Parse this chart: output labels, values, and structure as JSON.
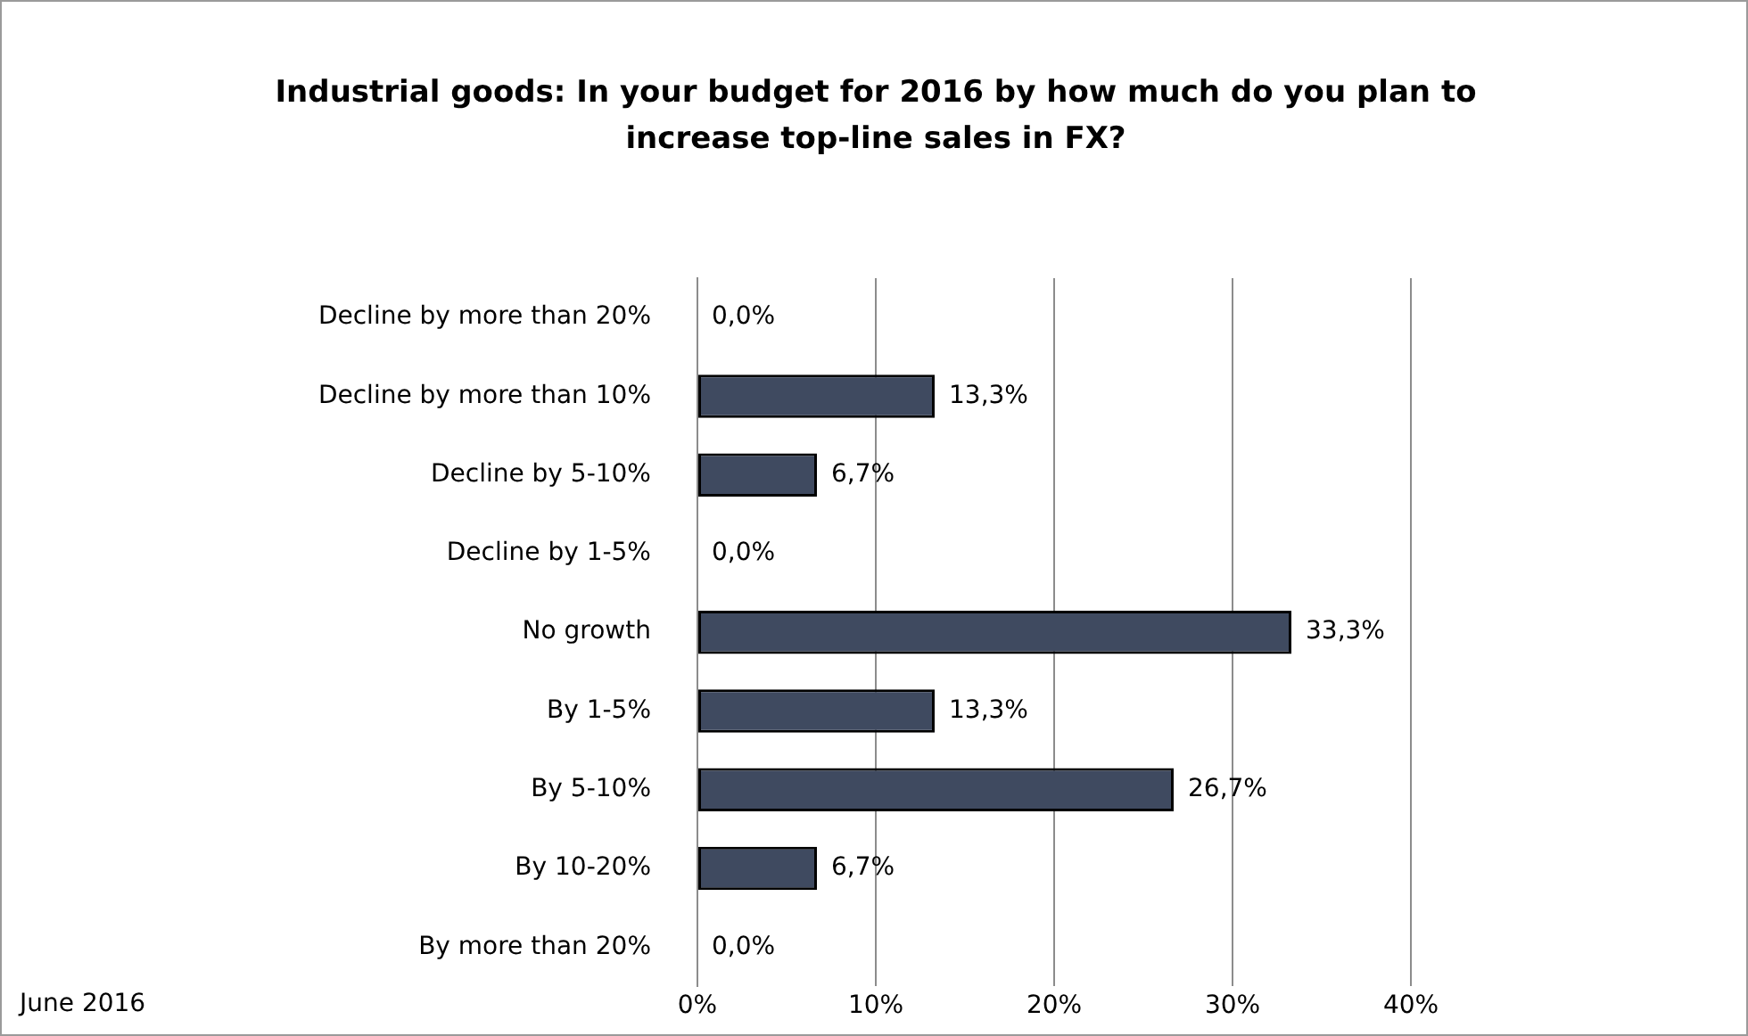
{
  "chart_data": {
    "type": "bar",
    "orientation": "horizontal",
    "title": "Industrial goods: In your budget for 2016 by how much do you plan to increase top-line sales in FX?",
    "categories": [
      "Decline by more than 20%",
      "Decline by more than 10%",
      "Decline by 5-10%",
      "Decline by 1-5%",
      "No growth",
      "By 1-5%",
      "By 5-10%",
      "By 10-20%",
      "By more than 20%"
    ],
    "values": [
      0,
      13.3,
      6.7,
      0,
      33.3,
      13.3,
      26.7,
      6.7,
      0
    ],
    "value_labels": [
      "0,0%",
      "13,3%",
      "6,7%",
      "0,0%",
      "33,3%",
      "13,3%",
      "26,7%",
      "6,7%",
      "0,0%"
    ],
    "color": "#3f4a60",
    "xlim": [
      0,
      40
    ],
    "xticks": [
      {
        "value": 0,
        "label": "0%"
      },
      {
        "value": 10,
        "label": "10%"
      },
      {
        "value": 20,
        "label": "20%"
      },
      {
        "value": 30,
        "label": "30%"
      },
      {
        "value": 40,
        "label": "40%"
      }
    ],
    "grid": "x",
    "legend": false,
    "annotations": [
      "June 2016"
    ]
  }
}
